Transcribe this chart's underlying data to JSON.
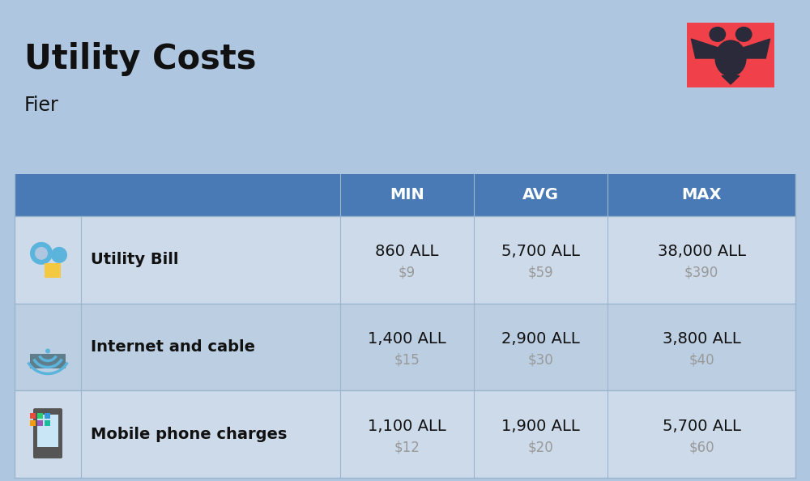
{
  "title": "Utility Costs",
  "subtitle": "Fier",
  "background_color": "#aec6df",
  "header_color": "#4a7ab5",
  "header_text_color": "#ffffff",
  "row_colors": [
    "#c8daec",
    "#bdd0e6"
  ],
  "icon_col_color": "#aec6df",
  "text_color": "#111111",
  "subtext_color": "#999999",
  "flag_red": "#f0404a",
  "columns": [
    "MIN",
    "AVG",
    "MAX"
  ],
  "rows": [
    {
      "label": "Utility Bill",
      "min_all": "860 ALL",
      "min_usd": "$9",
      "avg_all": "5,700 ALL",
      "avg_usd": "$59",
      "max_all": "38,000 ALL",
      "max_usd": "$390"
    },
    {
      "label": "Internet and cable",
      "min_all": "1,400 ALL",
      "min_usd": "$15",
      "avg_all": "2,900 ALL",
      "avg_usd": "$30",
      "max_all": "3,800 ALL",
      "max_usd": "$40"
    },
    {
      "label": "Mobile phone charges",
      "min_all": "1,100 ALL",
      "min_usd": "$12",
      "avg_all": "1,900 ALL",
      "avg_usd": "$20",
      "max_all": "5,700 ALL",
      "max_usd": "$60"
    }
  ],
  "fig_width": 10.0,
  "fig_height": 5.94,
  "dpi": 100
}
